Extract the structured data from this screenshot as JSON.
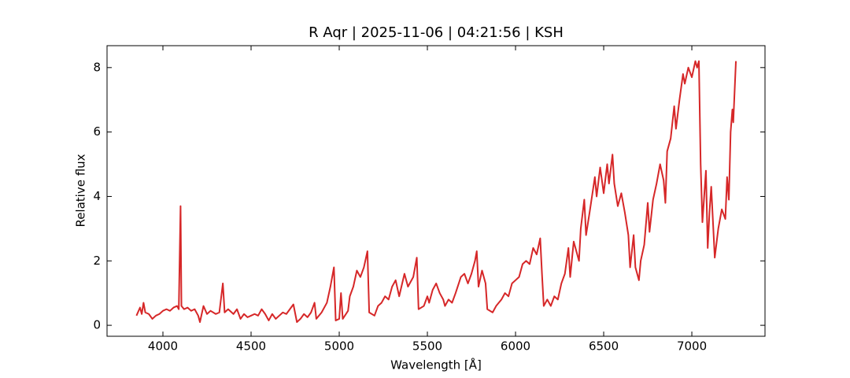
{
  "chart_data": {
    "type": "line",
    "title": "R Aqr | 2025-11-06 | 04:21:56 | KSH",
    "x_label": "Wavelength [Å]",
    "y_label": "Relative flux",
    "xlim": [
      3683,
      7415
    ],
    "ylim": [
      -0.34,
      8.68
    ],
    "xticks": [
      4000,
      4500,
      5000,
      5500,
      6000,
      6500,
      7000
    ],
    "yticks": [
      0,
      2,
      4,
      6,
      8
    ],
    "grid": false,
    "series": [
      {
        "name": "R Aqr",
        "color": "#d62728",
        "x": [
          3850,
          3870,
          3880,
          3890,
          3900,
          3920,
          3940,
          3960,
          3980,
          4000,
          4020,
          4040,
          4060,
          4080,
          4090,
          4100,
          4105,
          4120,
          4140,
          4160,
          4180,
          4200,
          4210,
          4230,
          4250,
          4270,
          4300,
          4320,
          4340,
          4350,
          4370,
          4400,
          4420,
          4440,
          4460,
          4480,
          4500,
          4520,
          4540,
          4560,
          4580,
          4600,
          4620,
          4640,
          4660,
          4680,
          4700,
          4740,
          4760,
          4780,
          4800,
          4820,
          4840,
          4860,
          4870,
          4900,
          4930,
          4950,
          4970,
          4980,
          5000,
          5010,
          5020,
          5050,
          5060,
          5080,
          5100,
          5120,
          5140,
          5160,
          5170,
          5200,
          5220,
          5240,
          5260,
          5280,
          5300,
          5320,
          5340,
          5370,
          5390,
          5420,
          5440,
          5450,
          5480,
          5500,
          5510,
          5530,
          5550,
          5570,
          5590,
          5600,
          5620,
          5640,
          5660,
          5690,
          5710,
          5730,
          5750,
          5770,
          5780,
          5790,
          5810,
          5830,
          5840,
          5870,
          5890,
          5920,
          5940,
          5960,
          5980,
          6000,
          6020,
          6040,
          6060,
          6080,
          6100,
          6120,
          6140,
          6150,
          6160,
          6180,
          6200,
          6220,
          6240,
          6260,
          6280,
          6300,
          6310,
          6330,
          6360,
          6370,
          6390,
          6400,
          6420,
          6450,
          6460,
          6480,
          6500,
          6520,
          6530,
          6550,
          6560,
          6580,
          6600,
          6620,
          6640,
          6650,
          6670,
          6680,
          6700,
          6710,
          6730,
          6750,
          6760,
          6780,
          6800,
          6820,
          6840,
          6850,
          6860,
          6880,
          6900,
          6910,
          6930,
          6950,
          6960,
          6980,
          7000,
          7020,
          7030,
          7040,
          7050,
          7060,
          7080,
          7090,
          7100,
          7110,
          7130,
          7150,
          7170,
          7190,
          7200,
          7210,
          7220,
          7230,
          7235,
          7250
        ],
        "values": [
          0.3,
          0.55,
          0.35,
          0.7,
          0.4,
          0.35,
          0.2,
          0.3,
          0.35,
          0.45,
          0.5,
          0.45,
          0.55,
          0.6,
          0.5,
          3.7,
          0.6,
          0.5,
          0.55,
          0.45,
          0.5,
          0.3,
          0.1,
          0.6,
          0.35,
          0.45,
          0.35,
          0.4,
          1.3,
          0.4,
          0.5,
          0.35,
          0.5,
          0.2,
          0.35,
          0.25,
          0.3,
          0.35,
          0.3,
          0.5,
          0.35,
          0.15,
          0.35,
          0.2,
          0.3,
          0.4,
          0.35,
          0.65,
          0.1,
          0.2,
          0.35,
          0.25,
          0.4,
          0.7,
          0.2,
          0.4,
          0.7,
          1.2,
          1.8,
          0.15,
          0.2,
          1.0,
          0.2,
          0.45,
          0.9,
          1.2,
          1.7,
          1.5,
          1.8,
          2.3,
          0.4,
          0.3,
          0.6,
          0.7,
          0.9,
          0.8,
          1.2,
          1.4,
          0.9,
          1.6,
          1.2,
          1.5,
          2.1,
          0.5,
          0.6,
          0.9,
          0.7,
          1.1,
          1.3,
          1.0,
          0.8,
          0.6,
          0.8,
          0.7,
          1.0,
          1.5,
          1.6,
          1.3,
          1.6,
          2.0,
          2.3,
          1.2,
          1.7,
          1.3,
          0.5,
          0.4,
          0.6,
          0.8,
          1.0,
          0.9,
          1.3,
          1.4,
          1.5,
          1.9,
          2.0,
          1.9,
          2.4,
          2.2,
          2.7,
          1.6,
          0.6,
          0.8,
          0.6,
          0.9,
          0.8,
          1.3,
          1.6,
          2.4,
          1.5,
          2.6,
          2.0,
          3.0,
          3.9,
          2.8,
          3.5,
          4.6,
          4.0,
          4.9,
          4.1,
          5.0,
          4.4,
          5.3,
          4.4,
          3.7,
          4.1,
          3.5,
          2.8,
          1.8,
          2.8,
          1.8,
          1.4,
          2.0,
          2.5,
          3.8,
          2.9,
          3.9,
          4.4,
          5.0,
          4.5,
          3.8,
          5.4,
          5.8,
          6.8,
          6.1,
          7.0,
          7.8,
          7.5,
          8.0,
          7.7,
          8.2,
          8.0,
          8.2,
          5.0,
          3.2,
          4.8,
          2.4,
          3.5,
          4.3,
          2.1,
          3.0,
          3.6,
          3.3,
          4.6,
          3.9,
          6.0,
          6.7,
          6.3,
          8.2
        ]
      }
    ]
  }
}
